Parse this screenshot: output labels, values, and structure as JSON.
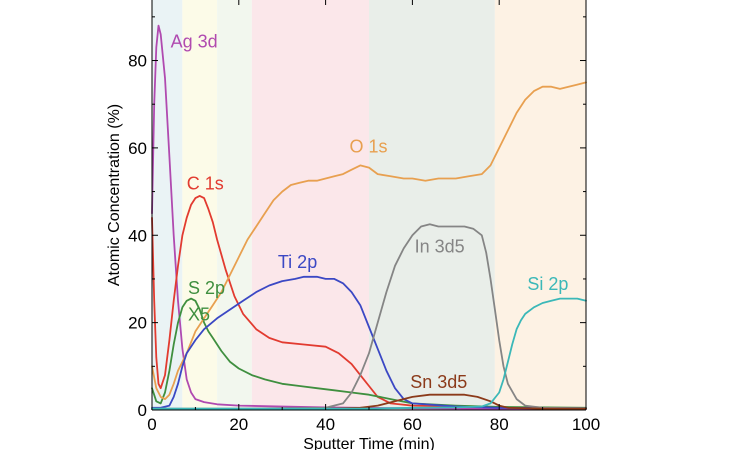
{
  "chart_data": {
    "type": "line",
    "title": "",
    "xlabel": "Sputter Time (min)",
    "ylabel": "Atomic Concentration (%)",
    "xlim": [
      0,
      100
    ],
    "ylim": [
      0,
      95
    ],
    "xticks": [
      0,
      20,
      40,
      60,
      80,
      100
    ],
    "yticks": [
      0,
      20,
      40,
      60,
      80
    ],
    "grid": false,
    "legend": "none (series labelled inline)",
    "bands": [
      {
        "x0": 0,
        "x1": 7,
        "color": "#eaf3f5"
      },
      {
        "x0": 7,
        "x1": 15,
        "color": "#fcfbe8"
      },
      {
        "x0": 15,
        "x1": 23,
        "color": "#f2f7ee"
      },
      {
        "x0": 23,
        "x1": 50,
        "color": "#fbe7ea"
      },
      {
        "x0": 50,
        "x1": 79,
        "color": "#e9eee9"
      },
      {
        "x0": 79,
        "x1": 100,
        "color": "#fdf2e4"
      }
    ],
    "series": [
      {
        "name": "Ag 3d",
        "color": "#b04ab0",
        "points": [
          [
            0,
            45
          ],
          [
            0.5,
            70
          ],
          [
            1,
            83
          ],
          [
            1.5,
            88
          ],
          [
            2,
            86
          ],
          [
            3,
            76
          ],
          [
            4,
            58
          ],
          [
            5,
            40
          ],
          [
            6,
            25
          ],
          [
            7,
            14
          ],
          [
            8,
            7
          ],
          [
            9,
            4
          ],
          [
            10,
            2.5
          ],
          [
            12,
            1.8
          ],
          [
            15,
            1.3
          ],
          [
            20,
            1
          ],
          [
            30,
            0.8
          ],
          [
            40,
            0.6
          ],
          [
            60,
            0.4
          ],
          [
            80,
            0.3
          ],
          [
            100,
            0.3
          ]
        ]
      },
      {
        "name": "C 1s",
        "color": "#e23b30",
        "points": [
          [
            0,
            44
          ],
          [
            0.5,
            25
          ],
          [
            1,
            12
          ],
          [
            1.5,
            6
          ],
          [
            2,
            5
          ],
          [
            3,
            8
          ],
          [
            4,
            16
          ],
          [
            5,
            25
          ],
          [
            6,
            33
          ],
          [
            7,
            40
          ],
          [
            8,
            44
          ],
          [
            9,
            47
          ],
          [
            10,
            48.5
          ],
          [
            11,
            49
          ],
          [
            12,
            48.5
          ],
          [
            13,
            46
          ],
          [
            14,
            43
          ],
          [
            15,
            39
          ],
          [
            17,
            32
          ],
          [
            19,
            26
          ],
          [
            21,
            22
          ],
          [
            24,
            18.5
          ],
          [
            27,
            16.5
          ],
          [
            30,
            15.5
          ],
          [
            35,
            15
          ],
          [
            40,
            14.5
          ],
          [
            43,
            13
          ],
          [
            46,
            10.5
          ],
          [
            48,
            8
          ],
          [
            50,
            5.5
          ],
          [
            52,
            3
          ],
          [
            55,
            1.5
          ],
          [
            60,
            1
          ],
          [
            70,
            0.8
          ],
          [
            80,
            0.6
          ],
          [
            100,
            0.4
          ]
        ]
      },
      {
        "name": "S 2p X5",
        "color": "#3f8f3f",
        "points": [
          [
            0,
            5
          ],
          [
            1,
            2
          ],
          [
            2,
            1.5
          ],
          [
            3,
            4
          ],
          [
            4,
            9
          ],
          [
            5,
            15
          ],
          [
            6,
            20
          ],
          [
            7,
            23.5
          ],
          [
            8,
            25
          ],
          [
            9,
            25.5
          ],
          [
            10,
            25
          ],
          [
            11,
            23
          ],
          [
            12,
            20
          ],
          [
            13,
            18
          ],
          [
            14,
            16.5
          ],
          [
            16,
            13.5
          ],
          [
            18,
            11
          ],
          [
            20,
            9.5
          ],
          [
            23,
            8
          ],
          [
            26,
            7
          ],
          [
            30,
            6
          ],
          [
            34,
            5.5
          ],
          [
            38,
            5
          ],
          [
            42,
            4.5
          ],
          [
            46,
            4
          ],
          [
            50,
            3.5
          ],
          [
            55,
            2.5
          ],
          [
            60,
            1.5
          ],
          [
            70,
            1
          ],
          [
            80,
            0.7
          ],
          [
            100,
            0.5
          ]
        ]
      },
      {
        "name": "O 1s",
        "color": "#e8a050",
        "points": [
          [
            0,
            10
          ],
          [
            1,
            5
          ],
          [
            2,
            3
          ],
          [
            3,
            2.5
          ],
          [
            4,
            3.5
          ],
          [
            5,
            6
          ],
          [
            6,
            9
          ],
          [
            8,
            13
          ],
          [
            10,
            18
          ],
          [
            12,
            21
          ],
          [
            14,
            24
          ],
          [
            16,
            27
          ],
          [
            18,
            31
          ],
          [
            20,
            35
          ],
          [
            22,
            39
          ],
          [
            24,
            42
          ],
          [
            26,
            45
          ],
          [
            28,
            48
          ],
          [
            30,
            50
          ],
          [
            32,
            51.5
          ],
          [
            34,
            52
          ],
          [
            36,
            52.5
          ],
          [
            38,
            52.5
          ],
          [
            40,
            53
          ],
          [
            42,
            53.5
          ],
          [
            44,
            54
          ],
          [
            46,
            55
          ],
          [
            48,
            56
          ],
          [
            50,
            55.5
          ],
          [
            52,
            54
          ],
          [
            55,
            53.5
          ],
          [
            58,
            53
          ],
          [
            60,
            53
          ],
          [
            63,
            52.5
          ],
          [
            66,
            53
          ],
          [
            70,
            53
          ],
          [
            73,
            53.5
          ],
          [
            76,
            54
          ],
          [
            78,
            56
          ],
          [
            80,
            60
          ],
          [
            82,
            64
          ],
          [
            84,
            68
          ],
          [
            86,
            71
          ],
          [
            88,
            73
          ],
          [
            90,
            74
          ],
          [
            92,
            74
          ],
          [
            94,
            73.5
          ],
          [
            96,
            74
          ],
          [
            98,
            74.5
          ],
          [
            100,
            75
          ]
        ]
      },
      {
        "name": "Ti 2p",
        "color": "#3b48c4",
        "points": [
          [
            0,
            0.5
          ],
          [
            2,
            0.5
          ],
          [
            4,
            1
          ],
          [
            5,
            3
          ],
          [
            6,
            6
          ],
          [
            7,
            10
          ],
          [
            8,
            13
          ],
          [
            10,
            16
          ],
          [
            12,
            18.5
          ],
          [
            15,
            21
          ],
          [
            18,
            23
          ],
          [
            21,
            25
          ],
          [
            24,
            27
          ],
          [
            27,
            28.5
          ],
          [
            30,
            29.5
          ],
          [
            33,
            30
          ],
          [
            35,
            30.5
          ],
          [
            38,
            30.5
          ],
          [
            40,
            30
          ],
          [
            42,
            30
          ],
          [
            44,
            29
          ],
          [
            46,
            27
          ],
          [
            48,
            24
          ],
          [
            50,
            19
          ],
          [
            52,
            14
          ],
          [
            54,
            9
          ],
          [
            56,
            5
          ],
          [
            58,
            2.5
          ],
          [
            60,
            1.5
          ],
          [
            70,
            0.8
          ],
          [
            80,
            0.5
          ],
          [
            100,
            0.4
          ]
        ]
      },
      {
        "name": "In 3d5",
        "color": "#858585",
        "points": [
          [
            0,
            0.3
          ],
          [
            20,
            0.3
          ],
          [
            40,
            0.5
          ],
          [
            44,
            1.5
          ],
          [
            46,
            4
          ],
          [
            48,
            8
          ],
          [
            50,
            13
          ],
          [
            52,
            20
          ],
          [
            54,
            27
          ],
          [
            56,
            33
          ],
          [
            58,
            37
          ],
          [
            60,
            40
          ],
          [
            62,
            42
          ],
          [
            64,
            42.5
          ],
          [
            66,
            42
          ],
          [
            68,
            42
          ],
          [
            70,
            42
          ],
          [
            72,
            42
          ],
          [
            74,
            41.5
          ],
          [
            76,
            40
          ],
          [
            77,
            36
          ],
          [
            78,
            30
          ],
          [
            79,
            23
          ],
          [
            80,
            16
          ],
          [
            81,
            10
          ],
          [
            82,
            6
          ],
          [
            84,
            2.5
          ],
          [
            86,
            1
          ],
          [
            90,
            0.5
          ],
          [
            100,
            0.4
          ]
        ]
      },
      {
        "name": "Sn 3d5",
        "color": "#8b3a1a",
        "points": [
          [
            0,
            0.2
          ],
          [
            40,
            0.3
          ],
          [
            48,
            0.5
          ],
          [
            52,
            1
          ],
          [
            56,
            2
          ],
          [
            60,
            3
          ],
          [
            64,
            3.5
          ],
          [
            68,
            3.5
          ],
          [
            72,
            3.5
          ],
          [
            75,
            3
          ],
          [
            78,
            2
          ],
          [
            80,
            1
          ],
          [
            82,
            0.5
          ],
          [
            90,
            0.3
          ],
          [
            100,
            0.3
          ]
        ]
      },
      {
        "name": "Si 2p",
        "color": "#3bb8b8",
        "points": [
          [
            0,
            0.3
          ],
          [
            50,
            0.3
          ],
          [
            60,
            0.5
          ],
          [
            70,
            0.6
          ],
          [
            76,
            0.8
          ],
          [
            78,
            1.5
          ],
          [
            80,
            4
          ],
          [
            81,
            7
          ],
          [
            82,
            11
          ],
          [
            83,
            15
          ],
          [
            84,
            18.5
          ],
          [
            85,
            20.5
          ],
          [
            86,
            22
          ],
          [
            88,
            23.5
          ],
          [
            90,
            24.5
          ],
          [
            92,
            25
          ],
          [
            94,
            25.5
          ],
          [
            96,
            25.5
          ],
          [
            98,
            25.5
          ],
          [
            100,
            25
          ]
        ]
      }
    ],
    "labels": [
      {
        "text": "Ag 3d",
        "x": 4.3,
        "y": 83,
        "color": "#b04ab0"
      },
      {
        "text": "O 1s",
        "x": 45.5,
        "y": 59,
        "color": "#e8a050"
      },
      {
        "text": "C 1s",
        "x": 8,
        "y": 50.5,
        "color": "#e23b30"
      },
      {
        "text": "Ti 2p",
        "x": 29,
        "y": 32.5,
        "color": "#3b48c4"
      },
      {
        "text": "In 3d5",
        "x": 60.5,
        "y": 36,
        "color": "#858585"
      },
      {
        "text": "Si 2p",
        "x": 86.5,
        "y": 27.5,
        "color": "#3bb8b8"
      },
      {
        "text": "S 2p",
        "x": 8.3,
        "y": 26.5,
        "color": "#3f8f3f"
      },
      {
        "text": "X5",
        "x": 8.3,
        "y": 20.5,
        "color": "#3f8f3f"
      },
      {
        "text": "Sn 3d5",
        "x": 59.5,
        "y": 5,
        "color": "#8b3a1a"
      }
    ]
  }
}
